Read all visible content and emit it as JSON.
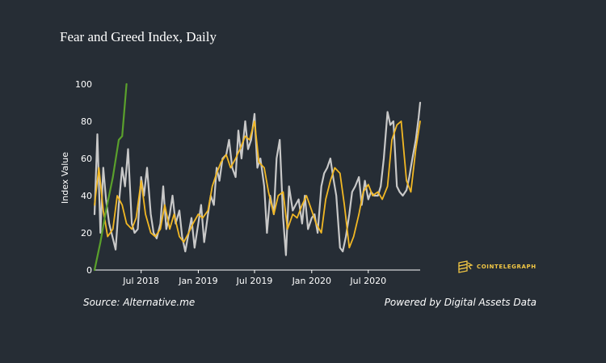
{
  "header": {
    "title": "Fear and Greed Index, Daily"
  },
  "footer": {
    "source": "Source: Alternative.me",
    "powered": "Powered by Digital Assets Data"
  },
  "logo": {
    "text": "COINTELEGRAPH",
    "icon": "cointelegraph-logo-icon",
    "color": "#f2c744"
  },
  "colors": {
    "background": "#262d35",
    "daily": "#c8c8c8",
    "average": "#f2b824",
    "outlier": "#5aa02c"
  },
  "chart_data": {
    "type": "line",
    "title": "Fear and Greed Index, Daily",
    "xlabel": "",
    "ylabel": "Index Value",
    "ylim": [
      0,
      100
    ],
    "yticks": [
      0,
      20,
      40,
      60,
      80,
      100
    ],
    "xlim": [
      "2018-02-01",
      "2020-12-15"
    ],
    "xticks": [
      {
        "date": "2018-07-01",
        "label": "Jul 2018"
      },
      {
        "date": "2019-01-01",
        "label": "Jan 2019"
      },
      {
        "date": "2019-07-01",
        "label": "Jul 2019"
      },
      {
        "date": "2020-01-01",
        "label": "Jan 2020"
      },
      {
        "date": "2020-07-01",
        "label": "Jul 2020"
      }
    ],
    "grid": false,
    "series": [
      {
        "key": "daily",
        "x": [
          "2018-02-01",
          "2018-02-10",
          "2018-02-20",
          "2018-03-01",
          "2018-03-10",
          "2018-03-20",
          "2018-04-01",
          "2018-04-10",
          "2018-04-20",
          "2018-05-01",
          "2018-05-10",
          "2018-05-20",
          "2018-06-01",
          "2018-06-10",
          "2018-06-20",
          "2018-07-01",
          "2018-07-10",
          "2018-07-20",
          "2018-08-01",
          "2018-08-10",
          "2018-08-20",
          "2018-09-01",
          "2018-09-10",
          "2018-09-20",
          "2018-10-01",
          "2018-10-10",
          "2018-10-20",
          "2018-11-01",
          "2018-11-10",
          "2018-11-20",
          "2018-12-01",
          "2018-12-10",
          "2018-12-20",
          "2019-01-01",
          "2019-01-10",
          "2019-01-20",
          "2019-02-01",
          "2019-02-10",
          "2019-02-20",
          "2019-03-01",
          "2019-03-10",
          "2019-03-20",
          "2019-04-01",
          "2019-04-10",
          "2019-04-20",
          "2019-05-01",
          "2019-05-10",
          "2019-05-20",
          "2019-06-01",
          "2019-06-10",
          "2019-06-20",
          "2019-07-01",
          "2019-07-10",
          "2019-07-20",
          "2019-08-01",
          "2019-08-10",
          "2019-08-20",
          "2019-09-01",
          "2019-09-10",
          "2019-09-20",
          "2019-10-01",
          "2019-10-10",
          "2019-10-20",
          "2019-11-01",
          "2019-11-10",
          "2019-11-20",
          "2019-12-01",
          "2019-12-10",
          "2019-12-20",
          "2020-01-01",
          "2020-01-10",
          "2020-01-20",
          "2020-02-01",
          "2020-02-10",
          "2020-02-20",
          "2020-03-01",
          "2020-03-10",
          "2020-03-20",
          "2020-04-01",
          "2020-04-10",
          "2020-04-20",
          "2020-05-01",
          "2020-05-10",
          "2020-05-20",
          "2020-06-01",
          "2020-06-10",
          "2020-06-20",
          "2020-07-01",
          "2020-07-10",
          "2020-07-20",
          "2020-08-01",
          "2020-08-10",
          "2020-08-20",
          "2020-09-01",
          "2020-09-10",
          "2020-09-20",
          "2020-10-01",
          "2020-10-10",
          "2020-10-20",
          "2020-11-01",
          "2020-11-10",
          "2020-11-20",
          "2020-12-01",
          "2020-12-10",
          "2020-12-15"
        ],
        "values": [
          30,
          73,
          20,
          55,
          38,
          25,
          17,
          11,
          35,
          55,
          45,
          65,
          25,
          20,
          22,
          50,
          40,
          55,
          30,
          20,
          17,
          25,
          45,
          22,
          30,
          40,
          25,
          32,
          18,
          10,
          20,
          28,
          12,
          25,
          35,
          15,
          30,
          40,
          35,
          55,
          48,
          60,
          62,
          70,
          55,
          50,
          75,
          60,
          80,
          65,
          70,
          84,
          55,
          60,
          45,
          20,
          40,
          30,
          60,
          70,
          28,
          8,
          45,
          32,
          35,
          38,
          25,
          40,
          22,
          28,
          30,
          20,
          45,
          52,
          55,
          60,
          50,
          40,
          12,
          10,
          18,
          30,
          42,
          45,
          50,
          35,
          48,
          38,
          42,
          40,
          40,
          45,
          60,
          85,
          78,
          80,
          45,
          42,
          40,
          43,
          50,
          60,
          70,
          82,
          90
        ]
      },
      {
        "key": "average",
        "x": [
          "2018-02-01",
          "2018-02-15",
          "2018-03-01",
          "2018-03-15",
          "2018-04-01",
          "2018-04-15",
          "2018-05-01",
          "2018-05-15",
          "2018-06-01",
          "2018-06-15",
          "2018-07-01",
          "2018-07-15",
          "2018-08-01",
          "2018-08-15",
          "2018-09-01",
          "2018-09-15",
          "2018-10-01",
          "2018-10-15",
          "2018-11-01",
          "2018-11-15",
          "2018-12-01",
          "2018-12-15",
          "2019-01-01",
          "2019-01-15",
          "2019-02-01",
          "2019-02-15",
          "2019-03-01",
          "2019-03-15",
          "2019-04-01",
          "2019-04-15",
          "2019-05-01",
          "2019-05-15",
          "2019-06-01",
          "2019-06-15",
          "2019-07-01",
          "2019-07-15",
          "2019-08-01",
          "2019-08-15",
          "2019-09-01",
          "2019-09-15",
          "2019-10-01",
          "2019-10-15",
          "2019-11-01",
          "2019-11-15",
          "2019-12-01",
          "2019-12-15",
          "2020-01-01",
          "2020-01-15",
          "2020-02-01",
          "2020-02-15",
          "2020-03-01",
          "2020-03-15",
          "2020-04-01",
          "2020-04-15",
          "2020-05-01",
          "2020-05-15",
          "2020-06-01",
          "2020-06-15",
          "2020-07-01",
          "2020-07-15",
          "2020-08-01",
          "2020-08-15",
          "2020-09-01",
          "2020-09-15",
          "2020-10-01",
          "2020-10-15",
          "2020-11-01",
          "2020-11-15",
          "2020-12-01",
          "2020-12-15"
        ],
        "values": [
          35,
          55,
          32,
          18,
          22,
          40,
          35,
          25,
          22,
          28,
          48,
          30,
          20,
          18,
          22,
          35,
          22,
          30,
          18,
          15,
          20,
          25,
          30,
          28,
          32,
          45,
          52,
          58,
          62,
          55,
          60,
          65,
          72,
          70,
          80,
          58,
          55,
          42,
          30,
          40,
          42,
          22,
          30,
          28,
          35,
          40,
          32,
          25,
          20,
          38,
          48,
          55,
          52,
          35,
          12,
          18,
          30,
          42,
          46,
          40,
          42,
          38,
          45,
          70,
          78,
          80,
          48,
          42,
          65,
          80
        ]
      },
      {
        "key": "outlier",
        "x": [
          "2018-02-01",
          "2018-02-20",
          "2018-03-10",
          "2018-04-01",
          "2018-04-20",
          "2018-05-01",
          "2018-05-15"
        ],
        "values": [
          0,
          15,
          32,
          50,
          70,
          72,
          100
        ]
      }
    ]
  }
}
